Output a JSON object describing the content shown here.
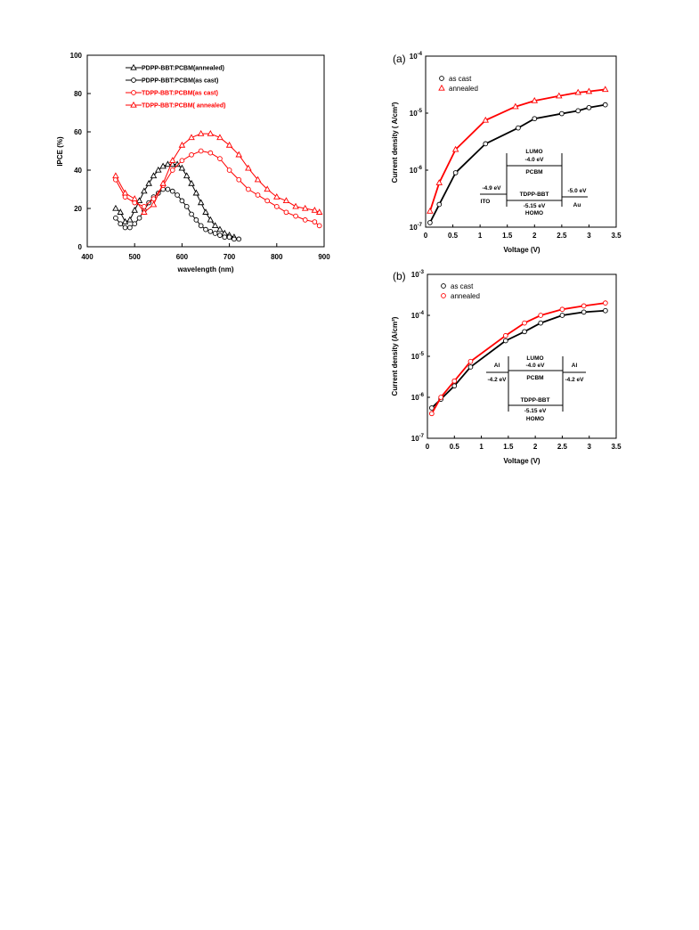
{
  "chart_data": [
    {
      "id": "ipce",
      "type": "line",
      "xlabel": "wavelength (nm)",
      "ylabel": "IPCE (%)",
      "xlim": [
        400,
        900
      ],
      "ylim": [
        0,
        100
      ],
      "xticks": [
        400,
        500,
        600,
        700,
        800,
        900
      ],
      "yticks": [
        0,
        20,
        40,
        60,
        80,
        100
      ],
      "grid": false,
      "legend_position": "top-left",
      "series": [
        {
          "name": "PDPP-BBT:PCBM(annealed)",
          "color": "#000000",
          "marker": "triangle",
          "x": [
            460,
            470,
            480,
            490,
            500,
            510,
            520,
            530,
            540,
            550,
            560,
            570,
            580,
            590,
            600,
            610,
            620,
            630,
            640,
            650,
            660,
            670,
            680,
            690,
            700,
            710
          ],
          "y": [
            20,
            18,
            13,
            14,
            19,
            24,
            29,
            33,
            37,
            40,
            42,
            43,
            43,
            43,
            41,
            37,
            33,
            28,
            23,
            18,
            14,
            11,
            9,
            7,
            6,
            5
          ]
        },
        {
          "name": "PDPP-BBT:PCBM(as cast)",
          "color": "#000000",
          "marker": "circle",
          "x": [
            460,
            470,
            480,
            490,
            500,
            510,
            520,
            530,
            540,
            550,
            560,
            570,
            580,
            590,
            600,
            610,
            620,
            630,
            640,
            650,
            660,
            670,
            680,
            690,
            700,
            710,
            720
          ],
          "y": [
            15,
            12,
            10,
            10,
            12,
            15,
            19,
            23,
            26,
            28,
            30,
            30,
            29,
            27,
            24,
            21,
            17,
            14,
            11,
            9,
            8,
            7,
            6,
            5,
            5,
            4,
            4
          ]
        },
        {
          "name": "TDPP-BBT:PCBM(as cast)",
          "color": "#ff0000",
          "marker": "circle",
          "x": [
            460,
            480,
            500,
            520,
            540,
            560,
            580,
            600,
            620,
            640,
            660,
            680,
            700,
            720,
            740,
            760,
            780,
            800,
            820,
            840,
            860,
            880,
            890
          ],
          "y": [
            35,
            26,
            23,
            21,
            25,
            32,
            40,
            45,
            48,
            50,
            49,
            46,
            40,
            35,
            30,
            27,
            24,
            21,
            18,
            16,
            14,
            13,
            11
          ]
        },
        {
          "name": "TDPP-BBT:PCBM( annealed)",
          "color": "#ff0000",
          "marker": "triangle",
          "x": [
            460,
            480,
            500,
            520,
            540,
            560,
            580,
            600,
            620,
            640,
            660,
            680,
            700,
            720,
            740,
            760,
            780,
            800,
            820,
            840,
            860,
            880,
            890
          ],
          "y": [
            37,
            28,
            25,
            18,
            22,
            33,
            45,
            53,
            57,
            59,
            59,
            57,
            53,
            48,
            41,
            35,
            30,
            26,
            24,
            21,
            20,
            19,
            18
          ]
        }
      ]
    },
    {
      "id": "a",
      "panel_label": "(a)",
      "type": "scatter",
      "xlabel": "Voltage (V)",
      "ylabel": "Current density ( A/cm²)",
      "xlim": [
        0,
        3.5
      ],
      "ylim": [
        1e-07,
        0.0001
      ],
      "yscale": "log",
      "xticks": [
        "0",
        "0.5",
        "1",
        "1.5",
        "2",
        "2.5",
        "3",
        "3.5"
      ],
      "yticks": [
        {
          "base": "10",
          "exp": "-7"
        },
        {
          "base": "10",
          "exp": "-6"
        },
        {
          "base": "10",
          "exp": "-5"
        },
        {
          "base": "10",
          "exp": "-4"
        }
      ],
      "grid": false,
      "legend_position": "top-left",
      "series": [
        {
          "name": "as cast",
          "color": "#000000",
          "marker": "circle",
          "x": [
            0.08,
            0.25,
            0.55,
            1.1,
            1.7,
            2.0,
            2.5,
            2.8,
            3.0,
            3.3
          ],
          "y": [
            1.2e-07,
            2.5e-07,
            9e-07,
            2.9e-06,
            5.5e-06,
            8e-06,
            9.8e-06,
            1.1e-05,
            1.25e-05,
            1.4e-05
          ]
        },
        {
          "name": "annealed",
          "color": "#ff0000",
          "marker": "triangle",
          "x": [
            0.08,
            0.25,
            0.55,
            1.1,
            1.65,
            2.0,
            2.45,
            2.8,
            3.0,
            3.3
          ],
          "y": [
            1.9e-07,
            6e-07,
            2.3e-06,
            7.5e-06,
            1.3e-05,
            1.65e-05,
            2e-05,
            2.3e-05,
            2.4e-05,
            2.6e-05
          ]
        }
      ],
      "diagram": {
        "lumo_label": "LUMO",
        "lumo_value": "-4.0 eV",
        "acceptor": "PCBM",
        "left_value": "-4.9 eV",
        "left_electrode": "ITO",
        "donor": "TDPP-BBT",
        "homo_value": "-5.15 eV",
        "homo_label": "HOMO",
        "right_value": "-5.0 eV",
        "right_electrode": "Au"
      }
    },
    {
      "id": "b",
      "panel_label": "(b)",
      "type": "scatter",
      "xlabel": "Voltage (V)",
      "ylabel": "Current density (A/cm²)",
      "xlim": [
        0,
        3.5
      ],
      "ylim": [
        1e-07,
        0.001
      ],
      "yscale": "log",
      "xticks": [
        "0",
        "0.5",
        "1",
        "1.5",
        "2",
        "2.5",
        "3",
        "3.5"
      ],
      "yticks": [
        {
          "base": "10",
          "exp": "-7"
        },
        {
          "base": "10",
          "exp": "-6"
        },
        {
          "base": "10",
          "exp": "-5"
        },
        {
          "base": "10",
          "exp": "-4"
        },
        {
          "base": "10",
          "exp": "-3"
        }
      ],
      "grid": false,
      "legend_position": "top-left",
      "series": [
        {
          "name": "as cast",
          "color": "#000000",
          "marker": "circle",
          "x": [
            0.08,
            0.25,
            0.5,
            0.8,
            1.45,
            1.8,
            2.1,
            2.5,
            2.9,
            3.3
          ],
          "y": [
            5.5e-07,
            9e-07,
            1.9e-06,
            5.5e-06,
            2.4e-05,
            4e-05,
            6.5e-05,
            0.0001,
            0.00012,
            0.00013
          ]
        },
        {
          "name": "annealed",
          "color": "#ff0000",
          "marker": "circle",
          "x": [
            0.08,
            0.25,
            0.5,
            0.8,
            1.45,
            1.8,
            2.1,
            2.5,
            2.9,
            3.3
          ],
          "y": [
            4e-07,
            1e-06,
            2.5e-06,
            7.5e-06,
            3.2e-05,
            6.5e-05,
            0.0001,
            0.00014,
            0.00017,
            0.0002
          ]
        }
      ],
      "diagram": {
        "left_electrode": "Al",
        "left_value": "-4.2 eV",
        "lumo_label": "LUMO",
        "lumo_value": "-4.0 eV",
        "acceptor": "PCBM",
        "right_electrode": "Al",
        "right_value": "-4.2 eV",
        "homo_value": "-5.15 eV",
        "donor": "TDPP-BBT",
        "homo_label": "HOMO"
      }
    }
  ]
}
